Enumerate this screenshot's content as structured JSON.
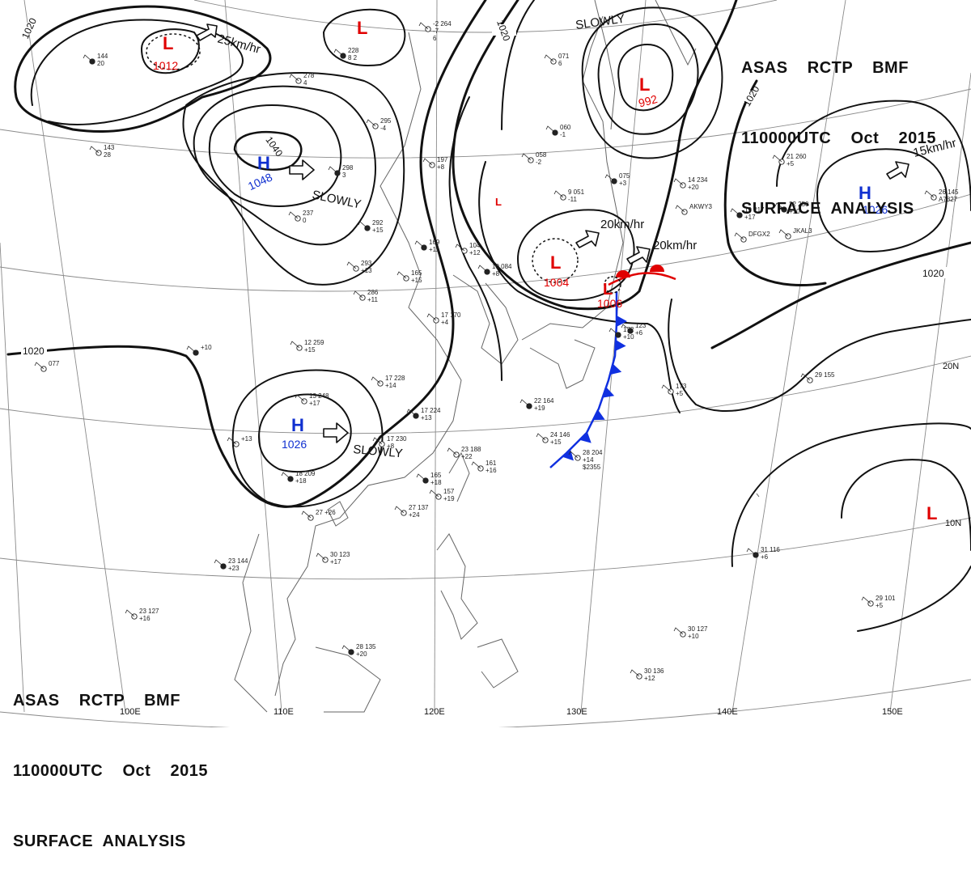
{
  "header": {
    "line1": "ASAS    RCTP    BMF",
    "line2": "110000UTC    Oct    2015",
    "line3": "SURFACE  ANALYSIS"
  },
  "colors": {
    "isobar": "#111111",
    "low": "#e00000",
    "high": "#1030d0",
    "cold_front": "#1030e0",
    "warm_front": "#e00000",
    "coast": "#666666",
    "grid": "#8a8a8a"
  },
  "pressure_systems": [
    {
      "id": "low-1012",
      "type": "L",
      "value": "1012"
    },
    {
      "id": "low-north",
      "type": "L",
      "value": ""
    },
    {
      "id": "low-992",
      "type": "L",
      "value": "992"
    },
    {
      "id": "high-1048",
      "type": "H",
      "value": "1048"
    },
    {
      "id": "high-1026-east",
      "type": "H",
      "value": "1026"
    },
    {
      "id": "high-1026-china",
      "type": "H",
      "value": "1026"
    },
    {
      "id": "low-1004",
      "type": "L",
      "value": "1004"
    },
    {
      "id": "low-1006",
      "type": "L",
      "value": "1006"
    },
    {
      "id": "low-tropics",
      "type": "L",
      "value": ""
    },
    {
      "id": "low-small",
      "type": "L",
      "value": ""
    }
  ],
  "movements": [
    {
      "id": "mv-low1012",
      "text": "25km/hr"
    },
    {
      "id": "mv-high1048",
      "text": "SLOWLY"
    },
    {
      "id": "mv-low992",
      "text": "SLOWLY"
    },
    {
      "id": "mv-low1004",
      "text": "20km/hr"
    },
    {
      "id": "mv-low1006",
      "text": "20km/hr"
    },
    {
      "id": "mv-high1026e",
      "text": "15km/hr"
    },
    {
      "id": "mv-high1026c",
      "text": "SLOWLY"
    }
  ],
  "isobar_labels": [
    "1020",
    "1020",
    "1040",
    "1020",
    "1020",
    "1020"
  ],
  "longitude_labels": [
    "100E",
    "110E",
    "120E",
    "130E",
    "140E",
    "150E"
  ],
  "latitude_labels": [
    "20N",
    "10N"
  ],
  "station_reports": [
    {
      "id": "s01",
      "lines": [
        "144",
        "20"
      ]
    },
    {
      "id": "s02",
      "lines": [
        "143",
        "28"
      ]
    },
    {
      "id": "s03",
      "lines": [
        "278",
        "4"
      ]
    },
    {
      "id": "s04",
      "lines": [
        "228",
        "8  2"
      ]
    },
    {
      "id": "s05",
      "lines": [
        "-2  264",
        "-7",
        "6"
      ]
    },
    {
      "id": "s06",
      "lines": [
        "295",
        "-4"
      ]
    },
    {
      "id": "s07",
      "lines": [
        "298",
        "3"
      ]
    },
    {
      "id": "s08",
      "lines": [
        "237",
        "0"
      ]
    },
    {
      "id": "s09",
      "lines": [
        "197",
        "+8"
      ]
    },
    {
      "id": "s10",
      "lines": [
        "292",
        "+15"
      ]
    },
    {
      "id": "s11",
      "lines": [
        "293",
        "+13"
      ]
    },
    {
      "id": "s12",
      "lines": [
        "286",
        "+11"
      ]
    },
    {
      "id": "s13",
      "lines": [
        "169",
        "+11"
      ]
    },
    {
      "id": "s14",
      "lines": [
        "104",
        "+12"
      ]
    },
    {
      "id": "s15",
      "lines": [
        "165",
        "+15"
      ]
    },
    {
      "id": "s16",
      "lines": [
        "10  084",
        "+8"
      ]
    },
    {
      "id": "s17",
      "lines": [
        "17  170",
        "+4"
      ]
    },
    {
      "id": "s18",
      "lines": [
        "071",
        "6"
      ]
    },
    {
      "id": "s19",
      "lines": [
        "060",
        "-1"
      ]
    },
    {
      "id": "s20",
      "lines": [
        "058",
        "-2"
      ]
    },
    {
      "id": "s21",
      "lines": [
        "9  051",
        "-11"
      ]
    },
    {
      "id": "s22",
      "lines": [
        "075",
        "+3"
      ]
    },
    {
      "id": "s23",
      "lines": [
        "14  234",
        "+20"
      ]
    },
    {
      "id": "s24",
      "lines": [
        "AKWY3"
      ]
    },
    {
      "id": "s25",
      "lines": [
        "19  217",
        "+17"
      ]
    },
    {
      "id": "s26",
      "lines": [
        "DFGX2"
      ]
    },
    {
      "id": "s27",
      "lines": [
        "21  260",
        "+5"
      ]
    },
    {
      "id": "s28",
      "lines": [
        "22  250",
        "+10"
      ]
    },
    {
      "id": "s29",
      "lines": [
        "JKAL3"
      ]
    },
    {
      "id": "s30",
      "lines": [
        "26  145",
        "A7827"
      ]
    },
    {
      "id": "s31",
      "lines": [
        "172",
        "+10"
      ]
    },
    {
      "id": "s32",
      "lines": [
        "12  259",
        "+15"
      ]
    },
    {
      "id": "s33",
      "lines": [
        "077"
      ]
    },
    {
      "id": "s34",
      "lines": [
        "+10"
      ]
    },
    {
      "id": "s35",
      "lines": [
        "17  228",
        "+14"
      ]
    },
    {
      "id": "s36",
      "lines": [
        "13  248",
        "+17"
      ]
    },
    {
      "id": "s37",
      "lines": [
        "17  224",
        "+13"
      ]
    },
    {
      "id": "s38",
      "lines": [
        "17  230",
        "+8"
      ]
    },
    {
      "id": "s39",
      "lines": [
        "+13"
      ]
    },
    {
      "id": "s40",
      "lines": [
        "18  209",
        "+18"
      ]
    },
    {
      "id": "s41",
      "lines": [
        "23  188",
        "+22"
      ]
    },
    {
      "id": "s42",
      "lines": [
        "161",
        "+16"
      ]
    },
    {
      "id": "s43",
      "lines": [
        "165",
        "+18"
      ]
    },
    {
      "id": "s44",
      "lines": [
        "157",
        "+19"
      ]
    },
    {
      "id": "s45",
      "lines": [
        "27  137",
        "+24"
      ]
    },
    {
      "id": "s46",
      "lines": [
        "22  164",
        "+19"
      ]
    },
    {
      "id": "s47",
      "lines": [
        "24  146",
        "+15"
      ]
    },
    {
      "id": "s48",
      "lines": [
        "28  204",
        "+14",
        "$2355"
      ]
    },
    {
      "id": "s49",
      "lines": [
        "123",
        "+6"
      ]
    },
    {
      "id": "s50",
      "lines": [
        "173",
        "+5"
      ]
    },
    {
      "id": "s51",
      "lines": [
        "29  155"
      ]
    },
    {
      "id": "s52",
      "lines": [
        "23  144",
        "+23"
      ]
    },
    {
      "id": "s53",
      "lines": [
        "30  123",
        "+17"
      ]
    },
    {
      "id": "s54",
      "lines": [
        "23  127",
        "+16"
      ]
    },
    {
      "id": "s55",
      "lines": [
        "28  135",
        "+20"
      ]
    },
    {
      "id": "s56",
      "lines": [
        "30  127",
        "+10"
      ]
    },
    {
      "id": "s57",
      "lines": [
        "30  136",
        "+12"
      ]
    },
    {
      "id": "s58",
      "lines": [
        "31  116",
        "+6"
      ]
    },
    {
      "id": "s59",
      "lines": [
        "29  101",
        "+5"
      ]
    },
    {
      "id": "s60",
      "lines": [
        "27  +26"
      ]
    }
  ]
}
